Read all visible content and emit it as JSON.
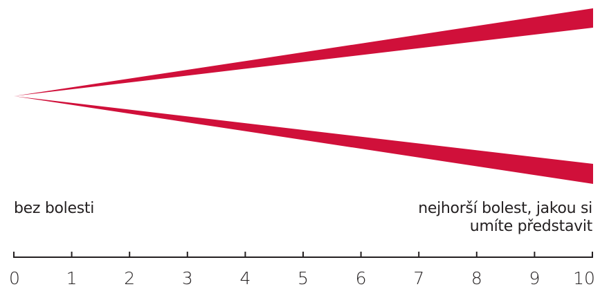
{
  "scale": {
    "min": 0,
    "max": 10,
    "tick_labels": [
      "0",
      "1",
      "2",
      "3",
      "4",
      "5",
      "6",
      "7",
      "8",
      "9",
      "10"
    ],
    "label_min": "bez bolesti",
    "label_max_line1": "nejhorší bolest, jakou si",
    "label_max_line2": "umíte představit"
  },
  "colors": {
    "wedge": "#d0103a",
    "axis": "#231f20",
    "background": "#ffffff"
  }
}
